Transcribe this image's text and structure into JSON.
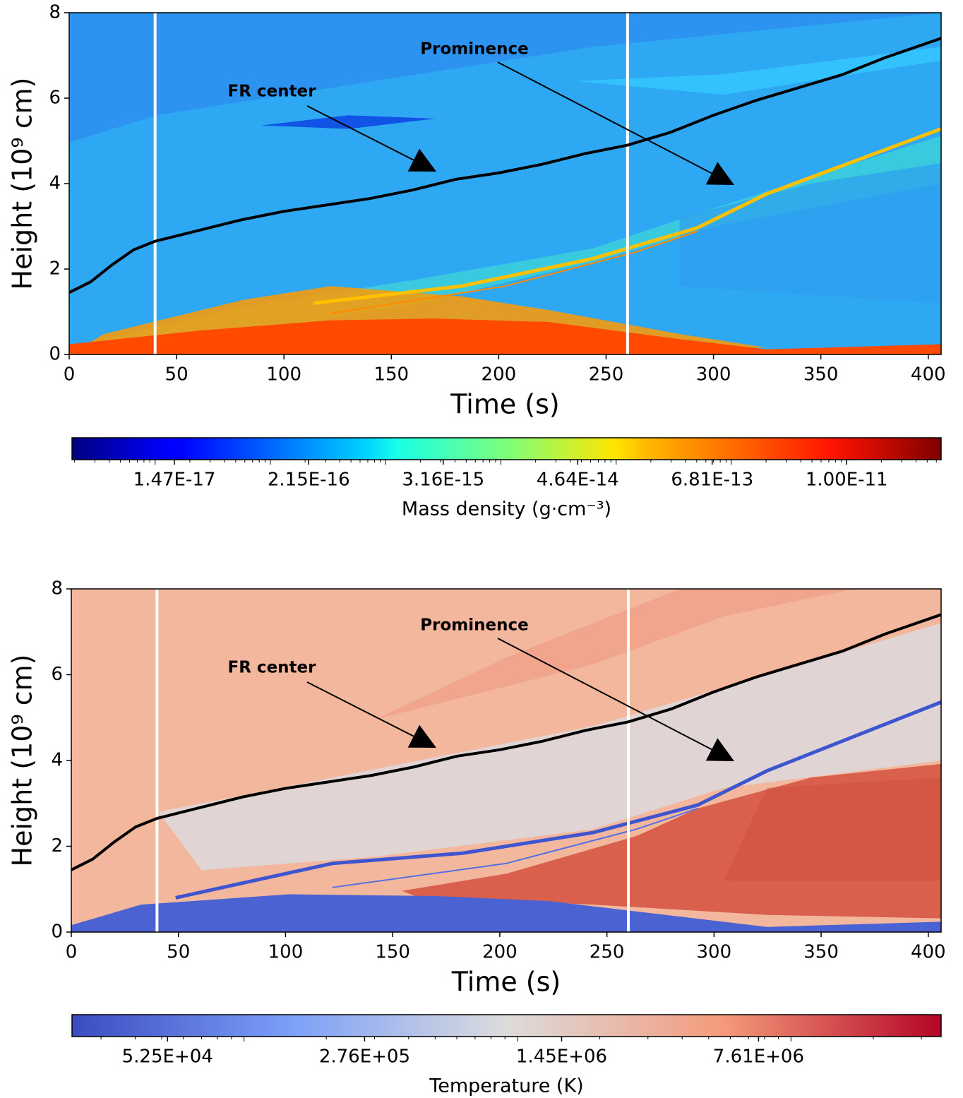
{
  "chart_data": [
    {
      "type": "heatmap",
      "xlabel": "Time (s)",
      "ylabel": "Height (10⁹ cm)",
      "xlim": [
        0,
        406
      ],
      "ylim": [
        0,
        8
      ],
      "xticks": [
        0,
        50,
        100,
        150,
        200,
        250,
        300,
        350,
        400
      ],
      "yticks": [
        0,
        2,
        4,
        6,
        8
      ],
      "colormap": "jet",
      "colorbar": {
        "label": "Mass density (g·cm⁻³)",
        "scale": "log",
        "lim": [
          1.9e-18,
          6.6e-11
        ],
        "ticks": [
          {
            "value": 1.47e-17,
            "label": "1.47E-17"
          },
          {
            "value": 2.15e-16,
            "label": "2.15E-16"
          },
          {
            "value": 3.16e-15,
            "label": "3.16E-15"
          },
          {
            "value": 4.64e-14,
            "label": "4.64E-14"
          },
          {
            "value": 6.81e-13,
            "label": "6.81E-13"
          },
          {
            "value": 1e-11,
            "label": "1.00E-11"
          }
        ]
      },
      "vlines": {
        "color": "#ffffff",
        "x": [
          40,
          260
        ]
      },
      "line": {
        "color": "#000000",
        "x": [
          0,
          10,
          20,
          30,
          40,
          60,
          80,
          100,
          120,
          140,
          160,
          180,
          200,
          220,
          240,
          260,
          280,
          300,
          320,
          340,
          360,
          380,
          406
        ],
        "values": [
          1.45,
          1.7,
          2.1,
          2.45,
          2.65,
          2.9,
          3.15,
          3.35,
          3.5,
          3.65,
          3.85,
          4.1,
          4.25,
          4.45,
          4.7,
          4.9,
          5.2,
          5.6,
          5.95,
          6.25,
          6.55,
          6.95,
          7.4
        ]
      },
      "annotations": [
        {
          "text": "FR center"
        },
        {
          "text": "Prominence"
        }
      ]
    },
    {
      "type": "heatmap",
      "xlabel": "Time (s)",
      "ylabel": "Height (10⁹ cm)",
      "xlim": [
        0,
        406
      ],
      "ylim": [
        0,
        8
      ],
      "xticks": [
        0,
        50,
        100,
        150,
        200,
        250,
        300,
        350,
        400
      ],
      "yticks": [
        0,
        2,
        4,
        6,
        8
      ],
      "colormap": "coolwarm",
      "colorbar": {
        "label": "Temperature (K)",
        "scale": "log",
        "lim": [
          23500,
          35400000
        ],
        "ticks": [
          {
            "value": 52500,
            "label": "5.25E+04"
          },
          {
            "value": 276000,
            "label": "2.76E+05"
          },
          {
            "value": 1450000,
            "label": "1.45E+06"
          },
          {
            "value": 7610000,
            "label": "7.61E+06"
          }
        ]
      },
      "vlines": {
        "color": "#ffffff",
        "x": [
          40,
          260
        ]
      },
      "line": {
        "color": "#000000",
        "x": [
          0,
          10,
          20,
          30,
          40,
          60,
          80,
          100,
          120,
          140,
          160,
          180,
          200,
          220,
          240,
          260,
          280,
          300,
          320,
          340,
          360,
          380,
          406
        ],
        "values": [
          1.45,
          1.7,
          2.1,
          2.45,
          2.65,
          2.9,
          3.15,
          3.35,
          3.5,
          3.65,
          3.85,
          4.1,
          4.25,
          4.45,
          4.7,
          4.9,
          5.2,
          5.6,
          5.95,
          6.25,
          6.55,
          6.95,
          7.4
        ]
      },
      "annotations": [
        {
          "text": "FR center"
        },
        {
          "text": "Prominence"
        }
      ]
    }
  ]
}
